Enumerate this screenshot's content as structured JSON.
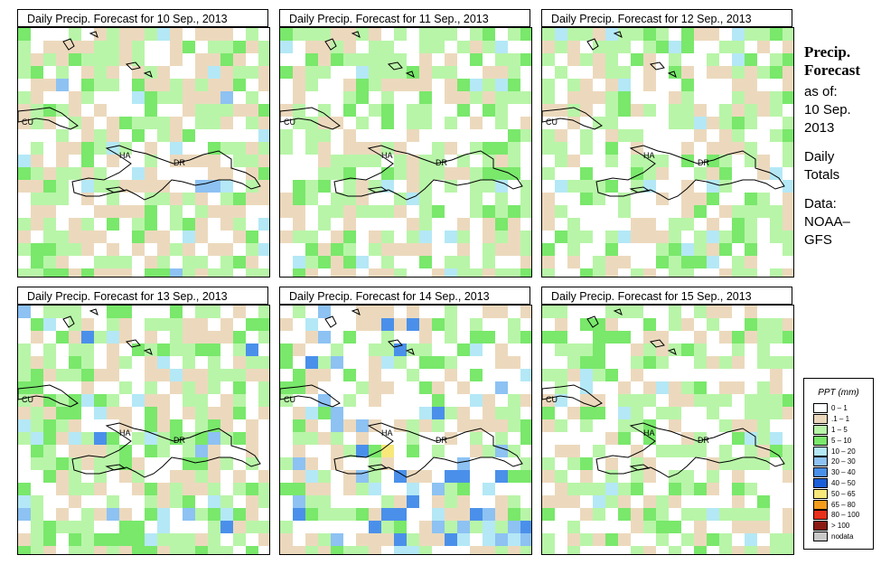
{
  "panels": [
    {
      "title": "Daily Precip. Forecast for  10 Sep., 2013",
      "seed": 11,
      "mode": "a"
    },
    {
      "title": "Daily Precip. Forecast for  11 Sep., 2013",
      "seed": 23,
      "mode": "b"
    },
    {
      "title": "Daily Precip. Forecast for  12 Sep., 2013",
      "seed": 37,
      "mode": "c"
    },
    {
      "title": "Daily Precip. Forecast for  13 Sep., 2013",
      "seed": 41,
      "mode": "d"
    },
    {
      "title": "Daily Precip. Forecast for  14 Sep., 2013",
      "seed": 53,
      "mode": "e"
    },
    {
      "title": "Daily Precip. Forecast for  15 Sep., 2013",
      "seed": 67,
      "mode": "f"
    }
  ],
  "map_labels": {
    "cu": "CU",
    "ha": "HA",
    "dr": "DR"
  },
  "sidebar": {
    "title_line1": "Precip.",
    "title_line2": "Forecast",
    "asof": "as of:",
    "date_line1": "10 Sep.",
    "date_line2": "2013",
    "daily_line1": "Daily",
    "daily_line2": "Totals",
    "data_line1": "Data:",
    "data_line2": "NOAA–",
    "data_line3": "GFS"
  },
  "legend": {
    "title": "PPT (mm)",
    "items": [
      {
        "label": "0 – 1",
        "color": "#ffffff"
      },
      {
        "label": ".1 – 1",
        "color": "#ecd9bd"
      },
      {
        "label": "1 – 5",
        "color": "#b8f5a8"
      },
      {
        "label": "5 – 10",
        "color": "#79e86b"
      },
      {
        "label": "10 – 20",
        "color": "#b4e8f6"
      },
      {
        "label": "20 – 30",
        "color": "#8dc2f3"
      },
      {
        "label": "30 – 40",
        "color": "#4a90ea"
      },
      {
        "label": "40 – 50",
        "color": "#1a5fd8"
      },
      {
        "label": "50 – 65",
        "color": "#f8e87a"
      },
      {
        "label": "65 – 80",
        "color": "#f49c1c"
      },
      {
        "label": "80 – 100",
        "color": "#e8301c"
      },
      {
        "label": "> 100",
        "color": "#8a1a12"
      },
      {
        "label": "nodata",
        "color": "#c8c8c8"
      }
    ]
  }
}
